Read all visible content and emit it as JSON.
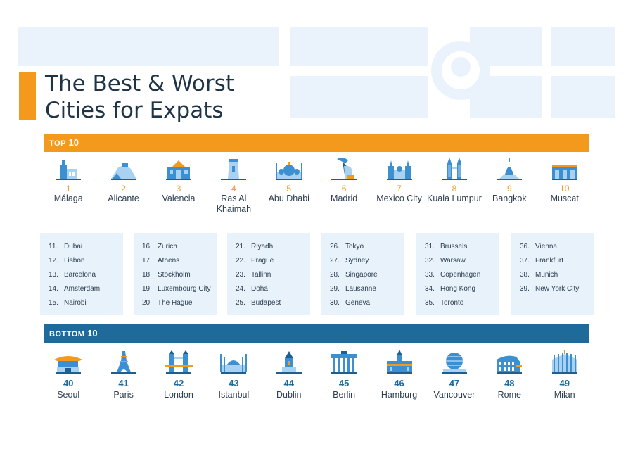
{
  "title": {
    "line1": "The Best & Worst",
    "line2": "Cities for Expats"
  },
  "top_band": {
    "label_big": "TOP",
    "label_num": "10"
  },
  "bottom_band": {
    "label_big": "BOTTOM",
    "label_num": "10"
  },
  "top10": [
    {
      "rank": "1",
      "name": "Málaga",
      "icon": "malaga-cathedral-icon"
    },
    {
      "rank": "2",
      "name": "Alicante",
      "icon": "alicante-castle-icon"
    },
    {
      "rank": "3",
      "name": "Valencia",
      "icon": "valencia-building-icon"
    },
    {
      "rank": "4",
      "name": "Ras Al Khaimah",
      "icon": "ras-al-khaimah-tower-icon"
    },
    {
      "rank": "5",
      "name": "Abu Dhabi",
      "icon": "abu-dhabi-mosque-icon"
    },
    {
      "rank": "6",
      "name": "Madrid",
      "icon": "madrid-bear-statue-icon"
    },
    {
      "rank": "7",
      "name": "Mexico City",
      "icon": "mexico-city-cathedral-icon"
    },
    {
      "rank": "8",
      "name": "Kuala Lumpur",
      "icon": "petronas-towers-icon"
    },
    {
      "rank": "9",
      "name": "Bangkok",
      "icon": "bangkok-temple-icon"
    },
    {
      "rank": "10",
      "name": "Muscat",
      "icon": "muscat-palace-icon"
    }
  ],
  "middle": [
    [
      {
        "n": "11.",
        "city": "Dubai"
      },
      {
        "n": "12.",
        "city": "Lisbon"
      },
      {
        "n": "13.",
        "city": "Barcelona"
      },
      {
        "n": "14.",
        "city": "Amsterdam"
      },
      {
        "n": "15.",
        "city": "Nairobi"
      }
    ],
    [
      {
        "n": "16.",
        "city": "Zurich"
      },
      {
        "n": "17.",
        "city": "Athens"
      },
      {
        "n": "18.",
        "city": "Stockholm"
      },
      {
        "n": "19.",
        "city": "Luxembourg City"
      },
      {
        "n": "20.",
        "city": "The Hague"
      }
    ],
    [
      {
        "n": "21.",
        "city": "Riyadh"
      },
      {
        "n": "22.",
        "city": "Prague"
      },
      {
        "n": "23.",
        "city": "Tallinn"
      },
      {
        "n": "24.",
        "city": "Doha"
      },
      {
        "n": "25.",
        "city": "Budapest"
      }
    ],
    [
      {
        "n": "26.",
        "city": "Tokyo"
      },
      {
        "n": "27.",
        "city": "Sydney"
      },
      {
        "n": "28.",
        "city": "Singapore"
      },
      {
        "n": "29.",
        "city": "Lausanne"
      },
      {
        "n": "30.",
        "city": "Geneva"
      }
    ],
    [
      {
        "n": "31.",
        "city": "Brussels"
      },
      {
        "n": "32.",
        "city": "Warsaw"
      },
      {
        "n": "33.",
        "city": "Copenhagen"
      },
      {
        "n": "34.",
        "city": "Hong Kong"
      },
      {
        "n": "35.",
        "city": "Toronto"
      }
    ],
    [
      {
        "n": "36.",
        "city": "Vienna"
      },
      {
        "n": "37.",
        "city": "Frankfurt"
      },
      {
        "n": "38.",
        "city": "Munich"
      },
      {
        "n": "39.",
        "city": "New York City"
      }
    ]
  ],
  "bottom10": [
    {
      "rank": "40",
      "name": "Seoul",
      "icon": "seoul-gate-icon"
    },
    {
      "rank": "41",
      "name": "Paris",
      "icon": "eiffel-tower-icon"
    },
    {
      "rank": "42",
      "name": "London",
      "icon": "tower-bridge-icon"
    },
    {
      "rank": "43",
      "name": "Istanbul",
      "icon": "istanbul-mosque-icon"
    },
    {
      "rank": "44",
      "name": "Dublin",
      "icon": "dublin-church-icon"
    },
    {
      "rank": "45",
      "name": "Berlin",
      "icon": "brandenburg-gate-icon"
    },
    {
      "rank": "46",
      "name": "Hamburg",
      "icon": "hamburg-town-hall-icon"
    },
    {
      "rank": "47",
      "name": "Vancouver",
      "icon": "vancouver-science-world-icon"
    },
    {
      "rank": "48",
      "name": "Rome",
      "icon": "colosseum-icon"
    },
    {
      "rank": "49",
      "name": "Milan",
      "icon": "milan-cathedral-icon"
    }
  ],
  "colors": {
    "accent_orange": "#f39a1d",
    "bottom_blue": "#1e6a9a",
    "icon_blue": "#3c8fd0",
    "icon_light": "#a9d2f2",
    "list_bg": "#e8f2fb",
    "map_bg": "#eaf3fc"
  }
}
